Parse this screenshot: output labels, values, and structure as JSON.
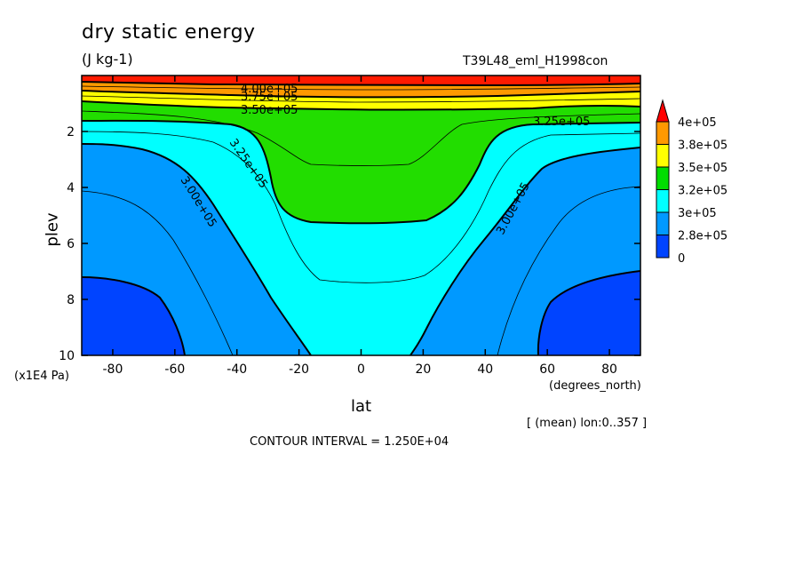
{
  "chart_data": {
    "type": "contour",
    "title": "dry static energy",
    "units": "(J kg-1)",
    "experiment": "T39L48_eml_H1998con",
    "xlabel": "lat",
    "xunits": "(degrees_north)",
    "ylabel": "plev",
    "yunits": "(x1E4 Pa)",
    "xlim": [
      -90,
      90
    ],
    "ylim": [
      10,
      0
    ],
    "x_ticks": [
      "-80",
      "-60",
      "-40",
      "-20",
      "0",
      "20",
      "40",
      "60",
      "80"
    ],
    "x_tick_values": [
      -80,
      -60,
      -40,
      -20,
      0,
      20,
      40,
      60,
      80
    ],
    "y_ticks": [
      "2",
      "4",
      "6",
      "8",
      "10"
    ],
    "y_tick_values": [
      2,
      4,
      6,
      8,
      10
    ],
    "contour_labels": [
      "4.00e+05",
      "3.75e+05",
      "3.50e+05",
      "3.25e+05",
      "3.25e+05",
      "3.00e+05",
      "3.00e+05"
    ],
    "legend_labels": [
      "4e+05",
      "3.8e+05",
      "3.5e+05",
      "3.2e+05",
      "3e+05",
      "2.8e+05",
      "0"
    ],
    "legend_colors": [
      "#ff0000",
      "#ff9900",
      "#ffff00",
      "#00dd00",
      "#00ffff",
      "#0099ff",
      "#0044ff"
    ],
    "colors": {
      "red": "#ff1a00",
      "orange": "#ff9900",
      "yellow": "#ffff00",
      "green": "#22dd00",
      "cyan": "#00ffff",
      "blue_mid": "#0099ff",
      "blue_dark": "#0044ff"
    },
    "mean_note": "[ (mean) lon:0..357 ]",
    "contour_interval": "CONTOUR INTERVAL = 1.250E+04"
  }
}
